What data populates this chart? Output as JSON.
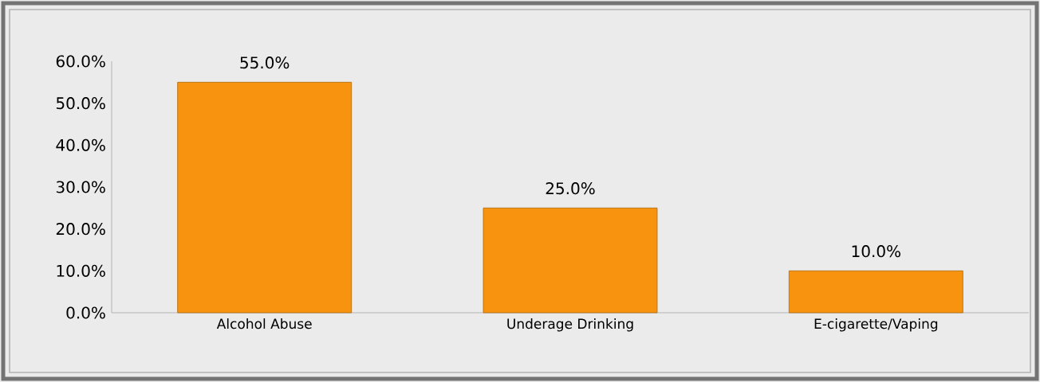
{
  "chart_data": {
    "type": "bar",
    "categories": [
      "Alcohol Abuse",
      "Underage Drinking",
      "E-cigarette/Vaping"
    ],
    "values": [
      55,
      25,
      10
    ],
    "value_labels": [
      "55.0%",
      "25.0%",
      "10.0%"
    ],
    "color": "#f7930f",
    "ylim": [
      0,
      60
    ],
    "yticks": [
      {
        "value": 0,
        "label": "0.0%"
      },
      {
        "value": 10,
        "label": "10.0%"
      },
      {
        "value": 20,
        "label": "20.0%"
      },
      {
        "value": 30,
        "label": "30.0%"
      },
      {
        "value": 40,
        "label": "40.0%"
      },
      {
        "value": 50,
        "label": "50.0%"
      },
      {
        "value": 60,
        "label": "60.0%"
      }
    ],
    "grid": false
  }
}
